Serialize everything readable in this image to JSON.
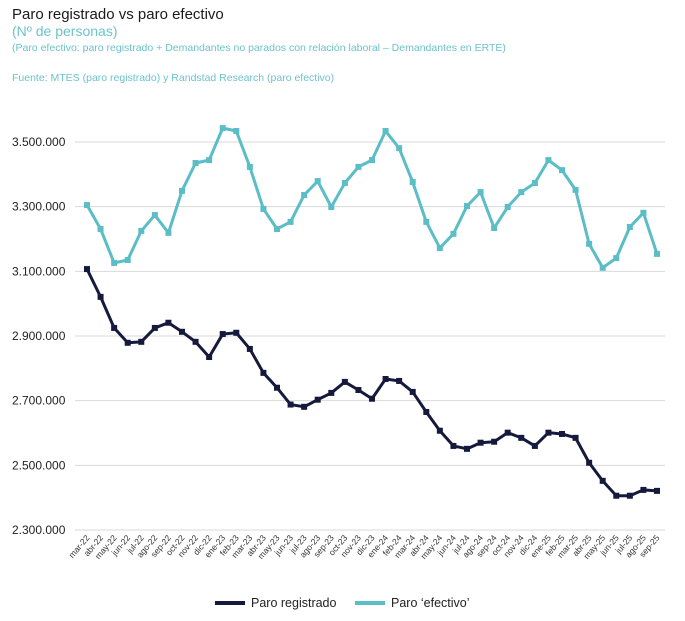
{
  "chart_data": {
    "type": "line",
    "title": "Paro registrado vs paro efectivo",
    "subtitle": "(Nº de personas)",
    "note": "(Paro efectivo: paro registrado + Demandantes no parados con relación laboral – Demandantes en ERTE)",
    "source": "Fuente: MTES (paro registrado) y Randstad Research (paro efectivo)",
    "ylim": [
      2300000,
      3500000
    ],
    "yticks": [
      3500000,
      3300000,
      3100000,
      2900000,
      2700000,
      2500000,
      2300000
    ],
    "ytick_labels": [
      "3.500.000",
      "3.300.000",
      "3.100.000",
      "2.900.000",
      "2.700.000",
      "2.500.000",
      "2.300.000"
    ],
    "grid": true,
    "legend_position": "bottom",
    "categories": [
      "mar-22",
      "abr-22",
      "may-22",
      "jun-22",
      "jul-22",
      "ago-22",
      "sep-22",
      "oct-22",
      "nov-22",
      "dic-22",
      "ene-23",
      "feb-23",
      "mar-23",
      "abr-23",
      "may-23",
      "jun-23",
      "jul-23",
      "ago-23",
      "sep-23",
      "oct-23",
      "nov-23",
      "dic-23",
      "ene-24",
      "feb-24",
      "mar-24",
      "abr-24",
      "may-24",
      "jun-24",
      "jul-24",
      "ago-24",
      "sep-24",
      "oct-24",
      "nov-24",
      "dic-24",
      "ene-25",
      "feb-25",
      "mar-25",
      "abr-25",
      "may-25",
      "jun-25",
      "jul-25",
      "ago-25",
      "sep-25"
    ],
    "series": [
      {
        "name": "Paro registrado",
        "color": "#151a3c",
        "values": [
          3107000,
          3021000,
          2925000,
          2879000,
          2882000,
          2925000,
          2941000,
          2913000,
          2882000,
          2835000,
          2906000,
          2910000,
          2860000,
          2786000,
          2740000,
          2688000,
          2681000,
          2703000,
          2724000,
          2758000,
          2733000,
          2706000,
          2767000,
          2761000,
          2727000,
          2665000,
          2607000,
          2560000,
          2551000,
          2570000,
          2573000,
          2601000,
          2585000,
          2560000,
          2601000,
          2597000,
          2585000,
          2508000,
          2452000,
          2406000,
          2406000,
          2424000,
          2421000
        ]
      },
      {
        "name": "Paro ‘efectivo’",
        "color": "#5bbdc6",
        "values": [
          3305000,
          3231000,
          3126000,
          3135000,
          3225000,
          3274000,
          3219000,
          3349000,
          3435000,
          3444000,
          3543000,
          3534000,
          3423000,
          3293000,
          3231000,
          3253000,
          3336000,
          3379000,
          3299000,
          3373000,
          3423000,
          3444000,
          3534000,
          3481000,
          3376000,
          3253000,
          3172000,
          3216000,
          3302000,
          3345000,
          3234000,
          3299000,
          3345000,
          3373000,
          3444000,
          3413000,
          3352000,
          3185000,
          3111000,
          3141000,
          3237000,
          3281000,
          3154000
        ]
      }
    ]
  }
}
